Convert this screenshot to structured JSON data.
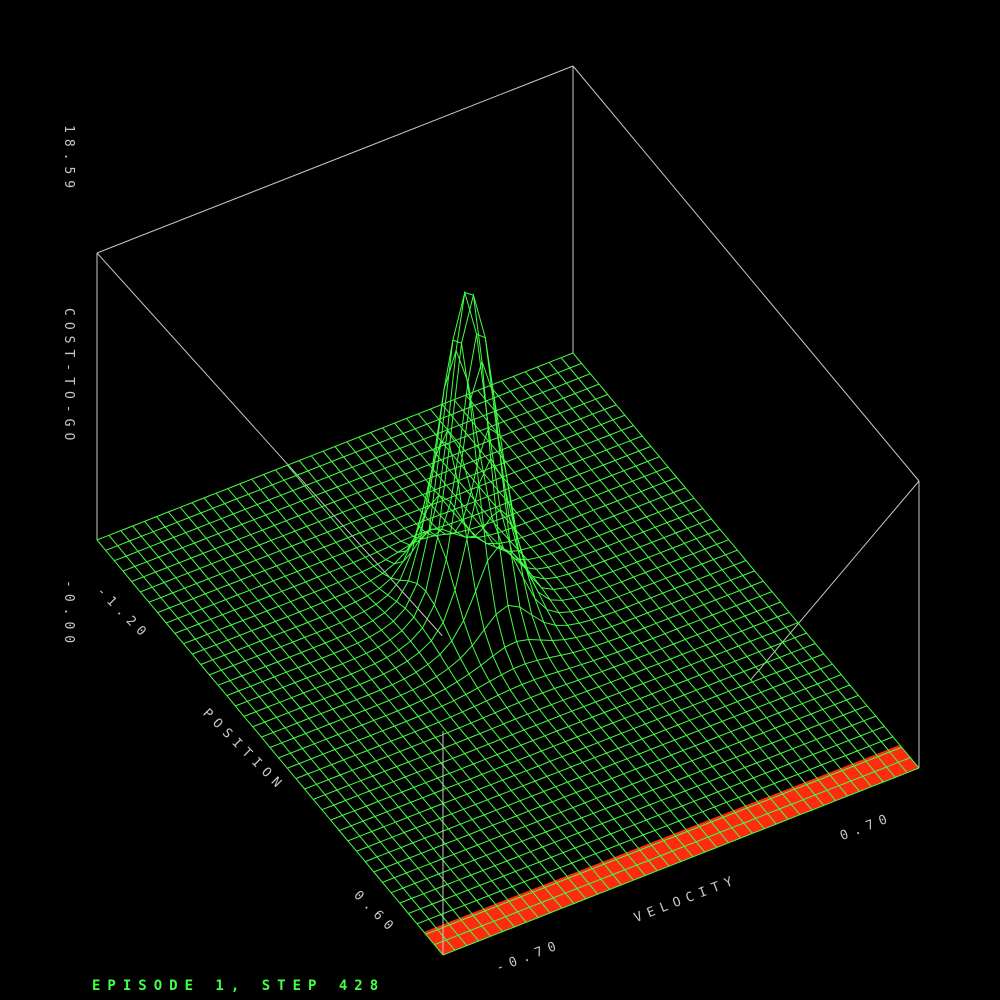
{
  "chart_data": {
    "type": "surface",
    "title": "",
    "zlabel": "COST-TO-GO",
    "xlabel": "POSITION",
    "ylabel": "VELOCITY",
    "zlim": [
      -0.0,
      18.59
    ],
    "xlim": [
      -1.2,
      0.6
    ],
    "ylim": [
      -0.7,
      0.7
    ],
    "z_tick_labels": [
      "18.59",
      "-0.00"
    ],
    "x_tick_labels": [
      "-1.20",
      "0.60"
    ],
    "y_tick_labels": [
      "-0.70",
      "0.70"
    ],
    "grid_resolution": [
      40,
      40
    ],
    "surface_color": "#44ff44",
    "goal_region_color": "#ff2a10",
    "box_color": "#c8c8c8",
    "peak": {
      "position": -0.5,
      "velocity": 0.0,
      "value": 18.59
    },
    "goal_region": {
      "position_min": 0.5,
      "position_max": 0.6
    }
  },
  "status": {
    "text": "EPISODE 1, STEP 428"
  }
}
